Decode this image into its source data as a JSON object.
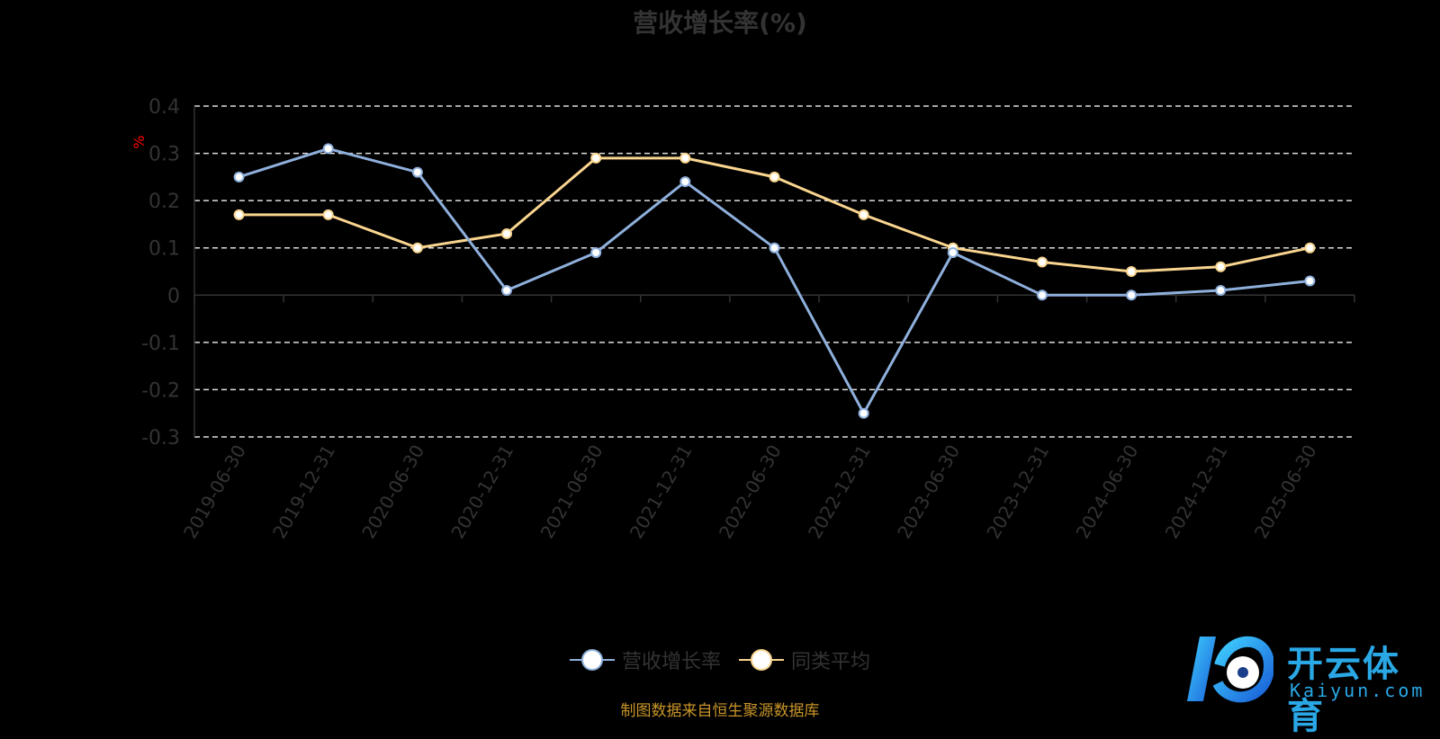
{
  "chart_data": {
    "type": "line",
    "title": "营收增长率(%)",
    "ylabel": "%",
    "xlabel": "",
    "categories": [
      "2019-06-30",
      "2019-12-31",
      "2020-06-30",
      "2020-12-31",
      "2021-06-30",
      "2021-12-31",
      "2022-06-30",
      "2022-12-31",
      "2023-06-30",
      "2023-12-31",
      "2024-06-30",
      "2024-12-31",
      "2025-06-30"
    ],
    "ylim": [
      -0.3,
      0.4
    ],
    "yticks": [
      "0.4",
      "0.3",
      "0.2",
      "0.1",
      "0",
      "-0.1",
      "-0.2",
      "-0.3"
    ],
    "ytick_values": [
      0.4,
      0.3,
      0.2,
      0.1,
      0,
      -0.1,
      -0.2,
      -0.3
    ],
    "grid": true,
    "legend_position": "bottom",
    "series": [
      {
        "name": "营收增长率",
        "color": "#8fb0dc",
        "values": [
          0.25,
          0.31,
          0.26,
          0.01,
          0.09,
          0.24,
          0.1,
          -0.25,
          0.09,
          0.0,
          0.0,
          0.01,
          0.03
        ]
      },
      {
        "name": "同类平均",
        "color": "#f9d58f",
        "values": [
          0.17,
          0.17,
          0.1,
          0.13,
          0.29,
          0.29,
          0.25,
          0.17,
          0.1,
          0.07,
          0.05,
          0.06,
          0.1
        ]
      }
    ]
  },
  "source": "制图数据来自恒生聚源数据库",
  "watermark": {
    "name": "开云体育",
    "url": "Kaiyun.com"
  },
  "colors": {
    "ylabel": "#ff0000",
    "source": "#c8952a",
    "axis": "#333333"
  }
}
